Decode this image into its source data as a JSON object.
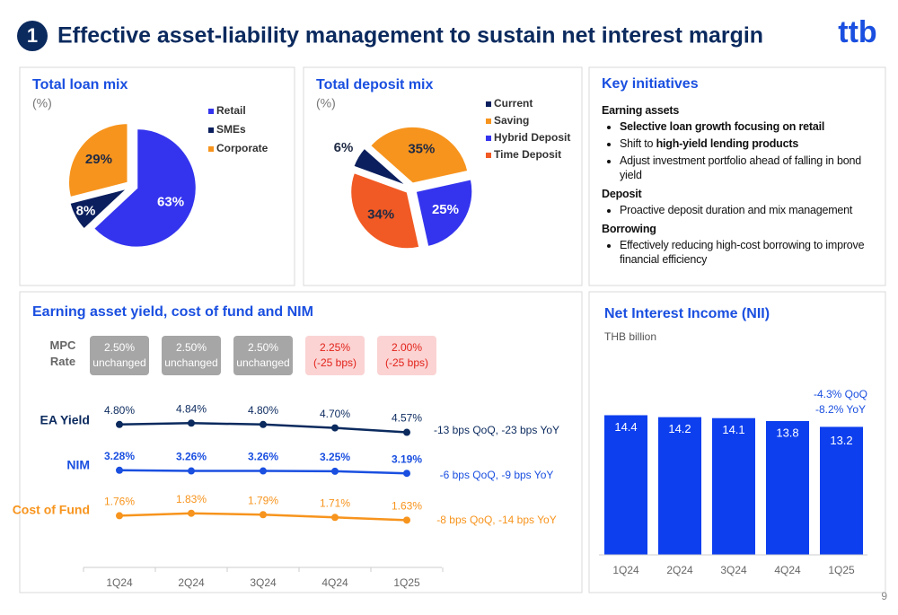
{
  "section_number": "1",
  "title": "Effective asset-liability management to sustain net interest margin",
  "logo": "ttb",
  "page_number": "9",
  "key_initiatives": {
    "title": "Key initiatives",
    "sections": [
      {
        "heading": "Earning assets",
        "bullets": [
          [
            {
              "text": "Selective loan growth focusing on retail",
              "bold": true
            }
          ],
          [
            {
              "text": "Shift to "
            },
            {
              "text": "high-yield lending products",
              "bold": true
            }
          ],
          [
            {
              "text": "Adjust investment portfolio ahead of falling in bond yield"
            }
          ]
        ]
      },
      {
        "heading": "Deposit",
        "bullets": [
          [
            {
              "text": "Proactive deposit duration and mix management"
            }
          ]
        ]
      },
      {
        "heading": "Borrowing",
        "bullets": [
          [
            {
              "text": "Effectively reducing high-cost borrowing to improve financial efficiency"
            }
          ]
        ]
      }
    ]
  },
  "chart_data": [
    {
      "type": "pie",
      "title": "Total loan mix",
      "subtitle": "(%)",
      "categories": [
        "Retail",
        "SMEs",
        "Corporate"
      ],
      "values": [
        63,
        8,
        29
      ],
      "value_labels": [
        "63%",
        "8%",
        "29%"
      ],
      "colors": [
        "#3434ee",
        "#0b1f5e",
        "#f7941d"
      ]
    },
    {
      "type": "pie",
      "title": "Total deposit mix",
      "subtitle": "(%)",
      "categories": [
        "Current",
        "Saving",
        "Hybrid Deposit",
        "Time Deposit"
      ],
      "values": [
        6,
        35,
        25,
        34
      ],
      "value_labels": [
        "6%",
        "35%",
        "25%",
        "34%"
      ],
      "colors": [
        "#0b1f5e",
        "#f7941d",
        "#3434ee",
        "#f15a24"
      ]
    },
    {
      "type": "line",
      "title": "Earning asset yield, cost of fund and NIM",
      "mpc_label": "MPC Rate",
      "mpc": [
        {
          "rate": "2.50%",
          "change": "unchanged",
          "color": "#a6a6a6",
          "text_color": "#ffffff"
        },
        {
          "rate": "2.50%",
          "change": "unchanged",
          "color": "#a6a6a6",
          "text_color": "#ffffff"
        },
        {
          "rate": "2.50%",
          "change": "unchanged",
          "color": "#a6a6a6",
          "text_color": "#ffffff"
        },
        {
          "rate": "2.25%",
          "change": "(-25 bps)",
          "color": "#fbd3d3",
          "text_color": "#e2231a"
        },
        {
          "rate": "2.00%",
          "change": "(-25 bps)",
          "color": "#fbd3d3",
          "text_color": "#e2231a"
        }
      ],
      "categories": [
        "1Q24",
        "2Q24",
        "3Q24",
        "4Q24",
        "1Q25"
      ],
      "series": [
        {
          "name": "EA Yield",
          "color": "#0b2a5e",
          "values": [
            4.8,
            4.84,
            4.8,
            4.7,
            4.57
          ],
          "value_labels": [
            "4.80%",
            "4.84%",
            "4.80%",
            "4.70%",
            "4.57%"
          ],
          "annotation": "-13 bps QoQ, -23 bps YoY"
        },
        {
          "name": "NIM",
          "color": "#1a4fe0",
          "values": [
            3.28,
            3.26,
            3.26,
            3.25,
            3.19
          ],
          "value_labels": [
            "3.28%",
            "3.26%",
            "3.26%",
            "3.25%",
            "3.19%"
          ],
          "annotation": "-6 bps QoQ, -9 bps YoY"
        },
        {
          "name": "Cost of Fund",
          "color": "#f7941d",
          "values": [
            1.76,
            1.83,
            1.79,
            1.71,
            1.63
          ],
          "value_labels": [
            "1.76%",
            "1.83%",
            "1.79%",
            "1.71%",
            "1.63%"
          ],
          "annotation": "-8 bps QoQ, -14 bps YoY"
        }
      ]
    },
    {
      "type": "bar",
      "title": "Net Interest Income (NII)",
      "subtitle": "THB billion",
      "categories": [
        "1Q24",
        "2Q24",
        "3Q24",
        "4Q24",
        "1Q25"
      ],
      "values": [
        14.4,
        14.2,
        14.1,
        13.8,
        13.2
      ],
      "color": "#0d3fef",
      "annotation": [
        "-4.3% QoQ",
        "-8.2% YoY"
      ]
    }
  ]
}
